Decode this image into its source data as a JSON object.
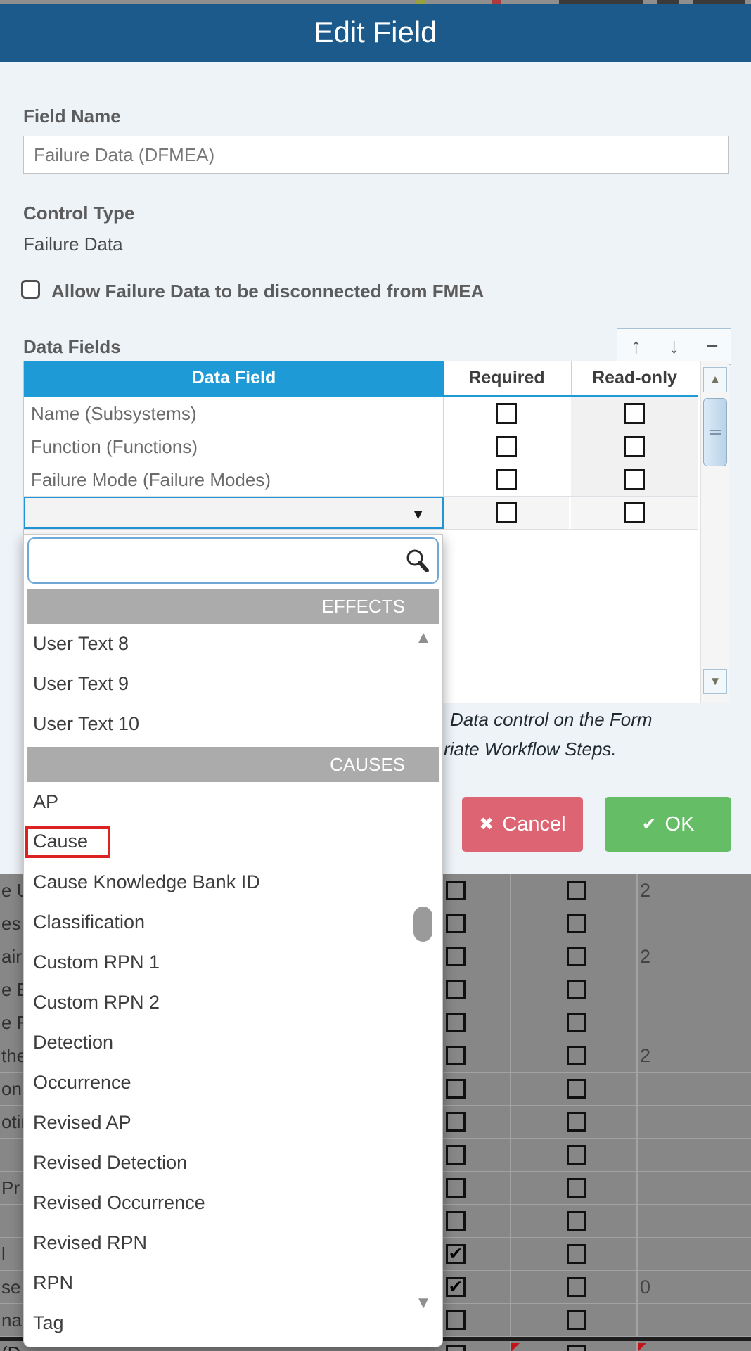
{
  "colors": {
    "header-blue": "#1b5a8a",
    "grid-blue": "#1e9bd7",
    "bar-gray": "#ababab",
    "cancel-pink": "#dc6473",
    "ok-green": "#65bd65",
    "dim-bg": "#878787",
    "dim-line": "#a2a2a2",
    "accent-border": "#2196d6",
    "annot-red": "#dd2222"
  },
  "dialog": {
    "title": "Edit Field",
    "field_name_label": "Field Name",
    "field_name_value": "Failure Data (DFMEA)",
    "control_type_label": "Control Type",
    "control_type_value": "Failure Data",
    "allow_label": "Allow Failure Data to be disconnected from FMEA",
    "allow_checked": false,
    "data_fields_label": "Data Fields",
    "toolbar": {
      "move_up": "↑",
      "move_down": "↓",
      "remove": "−"
    },
    "table": {
      "columns": [
        "Data Field",
        "Required",
        "Read-only"
      ],
      "rows": [
        {
          "field": "Name (Subsystems)",
          "required": false,
          "readonly": false,
          "dropdown_open": false
        },
        {
          "field": "Function (Functions)",
          "required": false,
          "readonly": false,
          "dropdown_open": false
        },
        {
          "field": "Failure Mode (Failure Modes)",
          "required": false,
          "readonly": false,
          "dropdown_open": false
        },
        {
          "field": "",
          "required": false,
          "readonly": false,
          "dropdown_open": true
        }
      ]
    },
    "note_line1": "Data control on the Form",
    "note_line2": "riate Workflow Steps.",
    "cancel_icon": "✖",
    "cancel_label": "Cancel",
    "ok_icon": "✔",
    "ok_label": "OK"
  },
  "dropdown": {
    "search_value": "",
    "scroll_up_glyph": "▲",
    "scroll_down_glyph": "▼",
    "groups": [
      {
        "header": "EFFECTS",
        "items": [
          "User Text 8",
          "User Text 9",
          "User Text 10"
        ]
      },
      {
        "header": "CAUSES",
        "items": [
          "AP",
          "Cause",
          "Cause Knowledge Bank ID",
          "Classification",
          "Custom RPN 1",
          "Custom RPN 2",
          "Detection",
          "Occurrence",
          "Revised AP",
          "Revised Detection",
          "Revised Occurrence",
          "Revised RPN",
          "RPN",
          "Tag"
        ]
      }
    ],
    "highlighted_item": "Cause"
  },
  "background_table": {
    "rows": [
      {
        "fragment": "e U",
        "c1": false,
        "c2": false,
        "value": "2"
      },
      {
        "fragment": "es",
        "c1": false,
        "c2": false,
        "value": ""
      },
      {
        "fragment": "air",
        "c1": false,
        "c2": false,
        "value": "2"
      },
      {
        "fragment": "e E",
        "c1": false,
        "c2": false,
        "value": ""
      },
      {
        "fragment": "e F",
        "c1": false,
        "c2": false,
        "value": ""
      },
      {
        "fragment": "the",
        "c1": false,
        "c2": false,
        "value": "2"
      },
      {
        "fragment": "on",
        "c1": false,
        "c2": false,
        "value": ""
      },
      {
        "fragment": "otir",
        "c1": false,
        "c2": false,
        "value": ""
      },
      {
        "fragment": "",
        "c1": false,
        "c2": false,
        "value": ""
      },
      {
        "fragment": "Pr",
        "c1": false,
        "c2": false,
        "value": ""
      },
      {
        "fragment": "",
        "c1": false,
        "c2": false,
        "value": ""
      },
      {
        "fragment": "l",
        "c1": true,
        "c2": false,
        "value": ""
      },
      {
        "fragment": "se",
        "c1": true,
        "c2": false,
        "value": "0"
      },
      {
        "fragment": "na",
        "c1": false,
        "c2": false,
        "value": ""
      }
    ],
    "partial_row": {
      "fragment": "(D"
    }
  }
}
